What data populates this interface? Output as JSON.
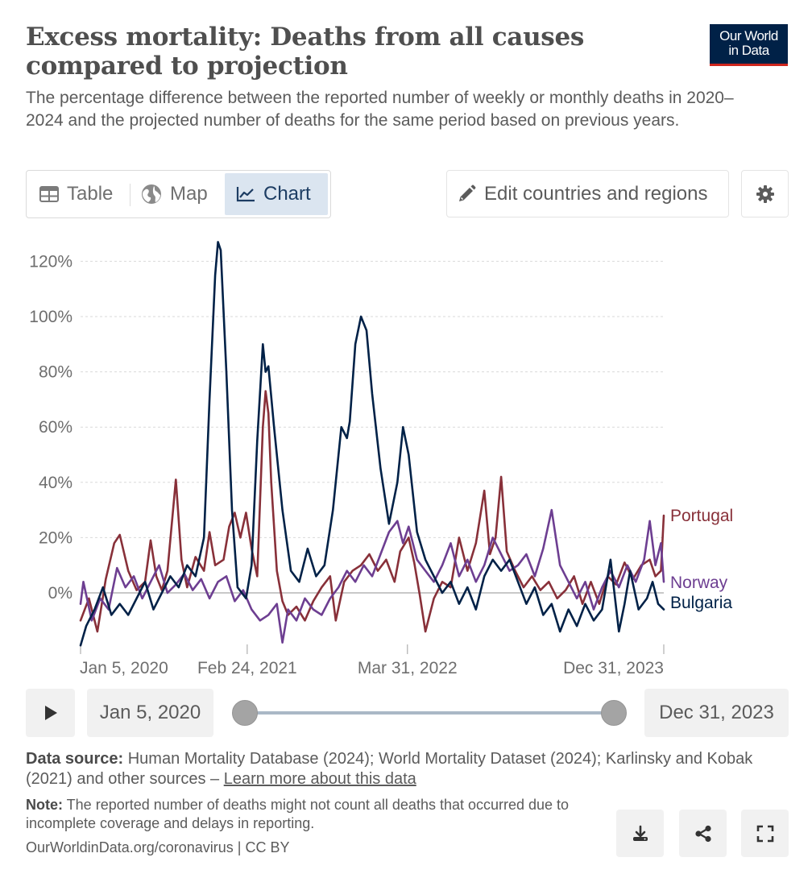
{
  "header": {
    "title": "Excess mortality: Deaths from all causes compared to projection",
    "subtitle": "The percentage difference between the reported number of weekly or monthly deaths in 2020–2024 and the projected number of deaths for the same period based on previous years.",
    "logo_line1": "Our World",
    "logo_line2": "in Data"
  },
  "tabs": [
    {
      "label": "Table",
      "icon": "table-icon"
    },
    {
      "label": "Map",
      "icon": "globe-icon"
    },
    {
      "label": "Chart",
      "icon": "line-chart-icon",
      "active": true
    }
  ],
  "controls": {
    "edit_label": "Edit countries and regions",
    "edit_icon": "pencil-icon",
    "settings_icon": "gear-icon"
  },
  "timeline": {
    "start": "Jan 5, 2020",
    "end": "Dec 31, 2023",
    "play_icon": "play-icon"
  },
  "footer": {
    "source_label": "Data source:",
    "source_text": " Human Mortality Database (2024); World Mortality Dataset (2024); Karlinsky and Kobak (2021) and other sources – ",
    "source_link": "Learn more about this data",
    "note_label": "Note:",
    "note_text": " The reported number of deaths might not count all deaths that occurred due to incomplete coverage and delays in reporting.",
    "credit": "OurWorldinData.org/coronavirus | CC BY",
    "icons": [
      "download-icon",
      "share-icon",
      "fullscreen-icon"
    ]
  },
  "chart_data": {
    "type": "line",
    "title": "Excess mortality: Deaths from all causes compared to projection",
    "y_unit": "%",
    "ylim": [
      -19,
      128
    ],
    "y_ticks": [
      0,
      20,
      40,
      60,
      80,
      100,
      120
    ],
    "y_tick_labels": [
      "0%",
      "20%",
      "40%",
      "60%",
      "80%",
      "100%",
      "120%"
    ],
    "x_range": [
      "2020-01-05",
      "2023-12-31"
    ],
    "x_ticks": [
      "2020-01-05",
      "2021-02-24",
      "2022-03-31",
      "2023-12-31"
    ],
    "x_tick_labels": [
      "Jan 5, 2020",
      "Feb 24, 2021",
      "Mar 31, 2022",
      "Dec 31, 2023"
    ],
    "grid": "horizontal-dashed",
    "legend": "inline-right",
    "series": [
      {
        "name": "Portugal",
        "color": "#883039",
        "points": [
          [
            "2020-01-05",
            -10
          ],
          [
            "2020-01-26",
            -2
          ],
          [
            "2020-02-16",
            -14
          ],
          [
            "2020-03-08",
            5
          ],
          [
            "2020-03-29",
            18
          ],
          [
            "2020-04-12",
            21
          ],
          [
            "2020-05-03",
            8
          ],
          [
            "2020-05-24",
            1
          ],
          [
            "2020-06-14",
            4
          ],
          [
            "2020-06-28",
            19
          ],
          [
            "2020-07-12",
            6
          ],
          [
            "2020-07-26",
            1
          ],
          [
            "2020-08-09",
            8
          ],
          [
            "2020-08-30",
            41
          ],
          [
            "2020-09-13",
            12
          ],
          [
            "2020-09-27",
            2
          ],
          [
            "2020-10-18",
            13
          ],
          [
            "2020-11-08",
            8
          ],
          [
            "2020-11-22",
            22
          ],
          [
            "2020-12-06",
            10
          ],
          [
            "2020-12-27",
            12
          ],
          [
            "2021-01-10",
            24
          ],
          [
            "2021-01-24",
            29
          ],
          [
            "2021-02-07",
            20
          ],
          [
            "2021-02-21",
            29
          ],
          [
            "2021-03-07",
            16
          ],
          [
            "2021-03-21",
            6
          ],
          [
            "2021-04-04",
            60
          ],
          [
            "2021-04-11",
            73
          ],
          [
            "2021-04-18",
            65
          ],
          [
            "2021-04-25",
            40
          ],
          [
            "2021-05-09",
            8
          ],
          [
            "2021-05-23",
            -3
          ],
          [
            "2021-06-06",
            -8
          ],
          [
            "2021-06-27",
            -5
          ],
          [
            "2021-07-18",
            -10
          ],
          [
            "2021-08-08",
            -3
          ],
          [
            "2021-08-29",
            2
          ],
          [
            "2021-09-19",
            6
          ],
          [
            "2021-10-03",
            -10
          ],
          [
            "2021-10-24",
            4
          ],
          [
            "2021-11-14",
            8
          ],
          [
            "2021-12-05",
            10
          ],
          [
            "2021-12-26",
            14
          ],
          [
            "2022-01-16",
            8
          ],
          [
            "2022-02-06",
            12
          ],
          [
            "2022-02-27",
            4
          ],
          [
            "2022-03-13",
            15
          ],
          [
            "2022-04-03",
            20
          ],
          [
            "2022-04-17",
            11
          ],
          [
            "2022-05-01",
            -1
          ],
          [
            "2022-05-15",
            -14
          ],
          [
            "2022-06-05",
            -2
          ],
          [
            "2022-06-26",
            4
          ],
          [
            "2022-07-17",
            2
          ],
          [
            "2022-08-07",
            20
          ],
          [
            "2022-08-28",
            8
          ],
          [
            "2022-09-18",
            18
          ],
          [
            "2022-10-09",
            37
          ],
          [
            "2022-10-23",
            14
          ],
          [
            "2022-11-06",
            20
          ],
          [
            "2022-11-20",
            42
          ],
          [
            "2022-12-04",
            15
          ],
          [
            "2022-12-25",
            8
          ],
          [
            "2023-01-15",
            2
          ],
          [
            "2023-02-05",
            6
          ],
          [
            "2023-02-26",
            1
          ],
          [
            "2023-03-19",
            4
          ],
          [
            "2023-04-09",
            -2
          ],
          [
            "2023-04-30",
            1
          ],
          [
            "2023-05-21",
            6
          ],
          [
            "2023-06-11",
            -4
          ],
          [
            "2023-07-02",
            4
          ],
          [
            "2023-07-23",
            -4
          ],
          [
            "2023-08-13",
            6
          ],
          [
            "2023-09-03",
            3
          ],
          [
            "2023-09-24",
            11
          ],
          [
            "2023-10-15",
            5
          ],
          [
            "2023-11-05",
            10
          ],
          [
            "2023-11-26",
            12
          ],
          [
            "2023-12-10",
            6
          ],
          [
            "2023-12-24",
            8
          ],
          [
            "2023-12-31",
            28
          ]
        ]
      },
      {
        "name": "Norway",
        "color": "#6d3e91",
        "points": [
          [
            "2020-01-05",
            -4
          ],
          [
            "2020-01-12",
            4
          ],
          [
            "2020-02-02",
            -10
          ],
          [
            "2020-02-23",
            -2
          ],
          [
            "2020-03-15",
            -6
          ],
          [
            "2020-04-05",
            9
          ],
          [
            "2020-04-26",
            2
          ],
          [
            "2020-05-17",
            6
          ],
          [
            "2020-06-07",
            -2
          ],
          [
            "2020-06-28",
            4
          ],
          [
            "2020-07-19",
            10
          ],
          [
            "2020-08-09",
            0
          ],
          [
            "2020-08-30",
            3
          ],
          [
            "2020-09-20",
            7
          ],
          [
            "2020-10-11",
            1
          ],
          [
            "2020-11-01",
            5
          ],
          [
            "2020-11-22",
            -2
          ],
          [
            "2020-12-13",
            4
          ],
          [
            "2021-01-03",
            6
          ],
          [
            "2021-01-24",
            -3
          ],
          [
            "2021-02-14",
            1
          ],
          [
            "2021-03-07",
            -6
          ],
          [
            "2021-03-28",
            -10
          ],
          [
            "2021-04-18",
            -8
          ],
          [
            "2021-05-09",
            -4
          ],
          [
            "2021-05-23",
            -18
          ],
          [
            "2021-06-06",
            -6
          ],
          [
            "2021-06-27",
            -10
          ],
          [
            "2021-07-18",
            -2
          ],
          [
            "2021-08-08",
            -6
          ],
          [
            "2021-08-29",
            -8
          ],
          [
            "2021-09-19",
            -2
          ],
          [
            "2021-10-10",
            2
          ],
          [
            "2021-10-31",
            8
          ],
          [
            "2021-11-21",
            4
          ],
          [
            "2021-12-12",
            10
          ],
          [
            "2022-01-02",
            6
          ],
          [
            "2022-01-23",
            14
          ],
          [
            "2022-02-13",
            22
          ],
          [
            "2022-03-06",
            26
          ],
          [
            "2022-03-20",
            18
          ],
          [
            "2022-04-03",
            24
          ],
          [
            "2022-04-24",
            12
          ],
          [
            "2022-05-15",
            8
          ],
          [
            "2022-06-05",
            4
          ],
          [
            "2022-06-26",
            10
          ],
          [
            "2022-07-17",
            18
          ],
          [
            "2022-08-07",
            6
          ],
          [
            "2022-08-28",
            12
          ],
          [
            "2022-09-18",
            4
          ],
          [
            "2022-10-09",
            10
          ],
          [
            "2022-10-30",
            20
          ],
          [
            "2022-11-20",
            14
          ],
          [
            "2022-12-11",
            8
          ],
          [
            "2023-01-01",
            10
          ],
          [
            "2023-01-22",
            14
          ],
          [
            "2023-02-12",
            6
          ],
          [
            "2023-03-05",
            16
          ],
          [
            "2023-03-26",
            30
          ],
          [
            "2023-04-16",
            10
          ],
          [
            "2023-05-07",
            4
          ],
          [
            "2023-05-28",
            -2
          ],
          [
            "2023-06-18",
            4
          ],
          [
            "2023-07-09",
            -6
          ],
          [
            "2023-07-30",
            2
          ],
          [
            "2023-08-20",
            8
          ],
          [
            "2023-09-10",
            2
          ],
          [
            "2023-10-01",
            10
          ],
          [
            "2023-10-22",
            4
          ],
          [
            "2023-11-12",
            12
          ],
          [
            "2023-11-26",
            26
          ],
          [
            "2023-12-10",
            10
          ],
          [
            "2023-12-24",
            18
          ],
          [
            "2023-12-31",
            4
          ]
        ]
      },
      {
        "name": "Bulgaria",
        "color": "#002147",
        "points": [
          [
            "2020-01-05",
            -19
          ],
          [
            "2020-01-19",
            -12
          ],
          [
            "2020-02-09",
            -6
          ],
          [
            "2020-03-01",
            2
          ],
          [
            "2020-03-22",
            -8
          ],
          [
            "2020-04-12",
            -4
          ],
          [
            "2020-05-03",
            -8
          ],
          [
            "2020-05-24",
            -2
          ],
          [
            "2020-06-14",
            4
          ],
          [
            "2020-07-05",
            -6
          ],
          [
            "2020-07-26",
            0
          ],
          [
            "2020-08-16",
            6
          ],
          [
            "2020-09-06",
            2
          ],
          [
            "2020-09-27",
            10
          ],
          [
            "2020-10-18",
            6
          ],
          [
            "2020-11-08",
            20
          ],
          [
            "2020-11-22",
            70
          ],
          [
            "2020-12-06",
            115
          ],
          [
            "2020-12-13",
            127
          ],
          [
            "2020-12-20",
            124
          ],
          [
            "2021-01-03",
            80
          ],
          [
            "2021-01-17",
            30
          ],
          [
            "2021-01-31",
            2
          ],
          [
            "2021-02-21",
            -2
          ],
          [
            "2021-03-07",
            10
          ],
          [
            "2021-03-21",
            55
          ],
          [
            "2021-04-04",
            90
          ],
          [
            "2021-04-11",
            80
          ],
          [
            "2021-04-18",
            82
          ],
          [
            "2021-05-02",
            60
          ],
          [
            "2021-05-23",
            30
          ],
          [
            "2021-06-13",
            8
          ],
          [
            "2021-07-04",
            4
          ],
          [
            "2021-07-25",
            16
          ],
          [
            "2021-08-15",
            6
          ],
          [
            "2021-09-05",
            10
          ],
          [
            "2021-09-26",
            30
          ],
          [
            "2021-10-17",
            60
          ],
          [
            "2021-10-31",
            56
          ],
          [
            "2021-11-07",
            62
          ],
          [
            "2021-11-21",
            90
          ],
          [
            "2021-12-05",
            100
          ],
          [
            "2021-12-19",
            95
          ],
          [
            "2022-01-02",
            72
          ],
          [
            "2022-01-23",
            45
          ],
          [
            "2022-02-13",
            25
          ],
          [
            "2022-03-06",
            40
          ],
          [
            "2022-03-20",
            60
          ],
          [
            "2022-04-03",
            50
          ],
          [
            "2022-04-24",
            22
          ],
          [
            "2022-05-15",
            12
          ],
          [
            "2022-06-05",
            6
          ],
          [
            "2022-06-26",
            0
          ],
          [
            "2022-07-17",
            4
          ],
          [
            "2022-08-07",
            -4
          ],
          [
            "2022-08-28",
            2
          ],
          [
            "2022-09-18",
            -6
          ],
          [
            "2022-10-09",
            6
          ],
          [
            "2022-10-30",
            12
          ],
          [
            "2022-11-20",
            8
          ],
          [
            "2022-12-11",
            12
          ],
          [
            "2023-01-01",
            4
          ],
          [
            "2023-01-22",
            -4
          ],
          [
            "2023-02-12",
            2
          ],
          [
            "2023-03-05",
            -8
          ],
          [
            "2023-03-26",
            -4
          ],
          [
            "2023-04-16",
            -14
          ],
          [
            "2023-05-07",
            -6
          ],
          [
            "2023-05-28",
            -12
          ],
          [
            "2023-06-18",
            -4
          ],
          [
            "2023-07-09",
            -10
          ],
          [
            "2023-07-30",
            -6
          ],
          [
            "2023-08-20",
            12
          ],
          [
            "2023-09-10",
            -14
          ],
          [
            "2023-09-24",
            -4
          ],
          [
            "2023-10-08",
            8
          ],
          [
            "2023-10-29",
            -6
          ],
          [
            "2023-11-19",
            -2
          ],
          [
            "2023-12-03",
            4
          ],
          [
            "2023-12-17",
            -4
          ],
          [
            "2023-12-31",
            -6
          ]
        ]
      }
    ]
  }
}
